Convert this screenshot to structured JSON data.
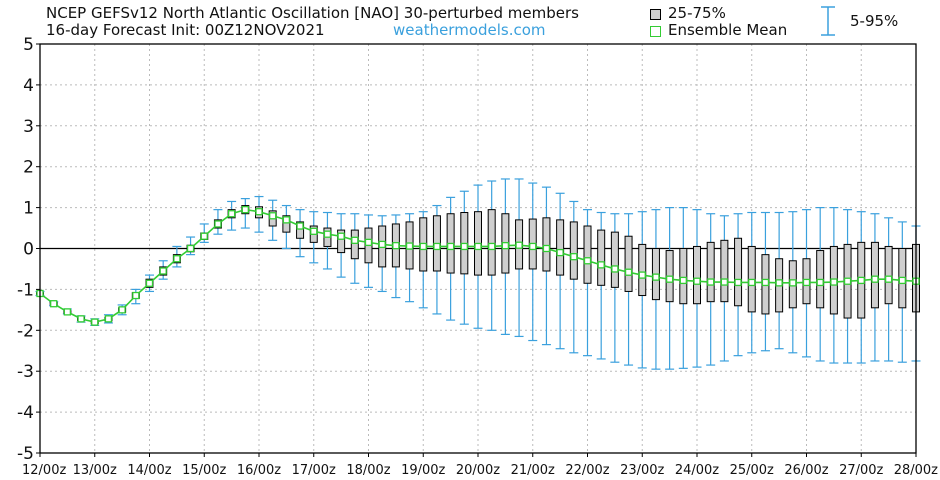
{
  "header": {
    "title_line1": "NCEP GEFSv12 North Atlantic Oscillation [NAO]  30-perturbed members",
    "title_line2": "16-day Forecast Init: 00Z12NOV2021",
    "credit": "weathermodels.com"
  },
  "legend": {
    "box_label": "25-75%",
    "mean_label": "Ensemble Mean",
    "whisker_label": "5-95%"
  },
  "colors": {
    "box_fill": "#cfcfcf",
    "box_edge": "#000000",
    "mean_line": "#33cc33",
    "whisker": "#3aa0dd",
    "grid": "#bbbbbb",
    "zero_line": "#000000"
  },
  "chart_data": {
    "type": "box",
    "title": "NCEP GEFSv12 North Atlantic Oscillation [NAO]  30-perturbed members",
    "subtitle": "16-day Forecast Init: 00Z12NOV2021",
    "xlabel": "",
    "ylabel": "",
    "ylim": [
      -5,
      5
    ],
    "yticks": [
      "5",
      "4",
      "3",
      "2",
      "1",
      "0",
      "-1",
      "-2",
      "-3",
      "-4",
      "-5"
    ],
    "xticks": [
      "12/00z",
      "13/00z",
      "14/00z",
      "15/00z",
      "16/00z",
      "17/00z",
      "18/00z",
      "19/00z",
      "20/00z",
      "21/00z",
      "22/00z",
      "23/00z",
      "24/00z",
      "25/00z",
      "26/00z",
      "27/00z",
      "28/00z"
    ],
    "x_step_hours": 6,
    "grid": true,
    "series": [
      {
        "name": "Ensemble Mean",
        "values": [
          -1.1,
          -1.35,
          -1.55,
          -1.72,
          -1.8,
          -1.72,
          -1.5,
          -1.15,
          -0.85,
          -0.55,
          -0.25,
          0.0,
          0.3,
          0.6,
          0.85,
          0.95,
          0.9,
          0.8,
          0.7,
          0.55,
          0.42,
          0.35,
          0.3,
          0.2,
          0.15,
          0.1,
          0.07,
          0.06,
          0.05,
          0.05,
          0.05,
          0.05,
          0.05,
          0.05,
          0.07,
          0.08,
          0.05,
          0.0,
          -0.1,
          -0.2,
          -0.3,
          -0.4,
          -0.5,
          -0.58,
          -0.65,
          -0.7,
          -0.75,
          -0.78,
          -0.8,
          -0.82,
          -0.82,
          -0.83,
          -0.83,
          -0.83,
          -0.84,
          -0.84,
          -0.83,
          -0.83,
          -0.82,
          -0.8,
          -0.78,
          -0.75,
          -0.75,
          -0.78,
          -0.8
        ]
      },
      {
        "name": "5%",
        "values": [
          -1.15,
          -1.4,
          -1.6,
          -1.8,
          -1.88,
          -1.82,
          -1.62,
          -1.35,
          -1.05,
          -0.75,
          -0.45,
          -0.15,
          0.15,
          0.35,
          0.45,
          0.5,
          0.4,
          0.2,
          0.0,
          -0.2,
          -0.35,
          -0.5,
          -0.7,
          -0.85,
          -0.95,
          -1.05,
          -1.2,
          -1.3,
          -1.45,
          -1.6,
          -1.75,
          -1.85,
          -1.95,
          -2.0,
          -2.1,
          -2.15,
          -2.25,
          -2.35,
          -2.45,
          -2.55,
          -2.62,
          -2.7,
          -2.78,
          -2.85,
          -2.92,
          -2.95,
          -2.95,
          -2.93,
          -2.9,
          -2.85,
          -2.75,
          -2.62,
          -2.55,
          -2.5,
          -2.45,
          -2.55,
          -2.65,
          -2.75,
          -2.8,
          -2.8,
          -2.8,
          -2.75,
          -2.75,
          -2.78,
          -2.75
        ]
      },
      {
        "name": "25%",
        "values": [
          -1.12,
          -1.38,
          -1.58,
          -1.76,
          -1.84,
          -1.77,
          -1.56,
          -1.22,
          -0.95,
          -0.65,
          -0.35,
          -0.08,
          0.22,
          0.5,
          0.75,
          0.85,
          0.75,
          0.55,
          0.4,
          0.25,
          0.15,
          0.05,
          -0.1,
          -0.25,
          -0.35,
          -0.45,
          -0.45,
          -0.5,
          -0.55,
          -0.55,
          -0.6,
          -0.62,
          -0.65,
          -0.65,
          -0.6,
          -0.5,
          -0.5,
          -0.55,
          -0.65,
          -0.75,
          -0.85,
          -0.9,
          -0.95,
          -1.05,
          -1.15,
          -1.25,
          -1.3,
          -1.35,
          -1.35,
          -1.3,
          -1.3,
          -1.4,
          -1.55,
          -1.6,
          -1.55,
          -1.45,
          -1.35,
          -1.45,
          -1.6,
          -1.7,
          -1.7,
          -1.45,
          -1.35,
          -1.45,
          -1.55
        ]
      },
      {
        "name": "75%",
        "values": [
          -1.08,
          -1.32,
          -1.52,
          -1.68,
          -1.76,
          -1.68,
          -1.45,
          -1.08,
          -0.75,
          -0.45,
          -0.15,
          0.08,
          0.38,
          0.7,
          0.95,
          1.05,
          1.02,
          0.92,
          0.8,
          0.65,
          0.55,
          0.5,
          0.45,
          0.45,
          0.5,
          0.55,
          0.6,
          0.65,
          0.75,
          0.8,
          0.85,
          0.88,
          0.9,
          0.95,
          0.85,
          0.7,
          0.72,
          0.75,
          0.7,
          0.65,
          0.55,
          0.45,
          0.4,
          0.3,
          0.1,
          0.0,
          -0.05,
          0.0,
          0.05,
          0.15,
          0.2,
          0.25,
          0.05,
          -0.15,
          -0.25,
          -0.3,
          -0.25,
          -0.05,
          0.05,
          0.1,
          0.15,
          0.15,
          0.05,
          0.0,
          0.1
        ]
      },
      {
        "name": "95%",
        "values": [
          -1.05,
          -1.3,
          -1.48,
          -1.65,
          -1.72,
          -1.62,
          -1.38,
          -1.0,
          -0.65,
          -0.3,
          0.05,
          0.28,
          0.6,
          0.95,
          1.15,
          1.22,
          1.27,
          1.18,
          1.05,
          0.95,
          0.9,
          0.88,
          0.85,
          0.85,
          0.82,
          0.8,
          0.82,
          0.85,
          0.9,
          1.05,
          1.25,
          1.4,
          1.55,
          1.65,
          1.7,
          1.7,
          1.6,
          1.5,
          1.35,
          1.15,
          0.95,
          0.88,
          0.85,
          0.85,
          0.9,
          0.95,
          1.0,
          1.0,
          0.95,
          0.85,
          0.8,
          0.85,
          0.88,
          0.88,
          0.88,
          0.9,
          0.95,
          1.0,
          1.0,
          0.95,
          0.9,
          0.85,
          0.75,
          0.65,
          0.55
        ]
      }
    ]
  }
}
